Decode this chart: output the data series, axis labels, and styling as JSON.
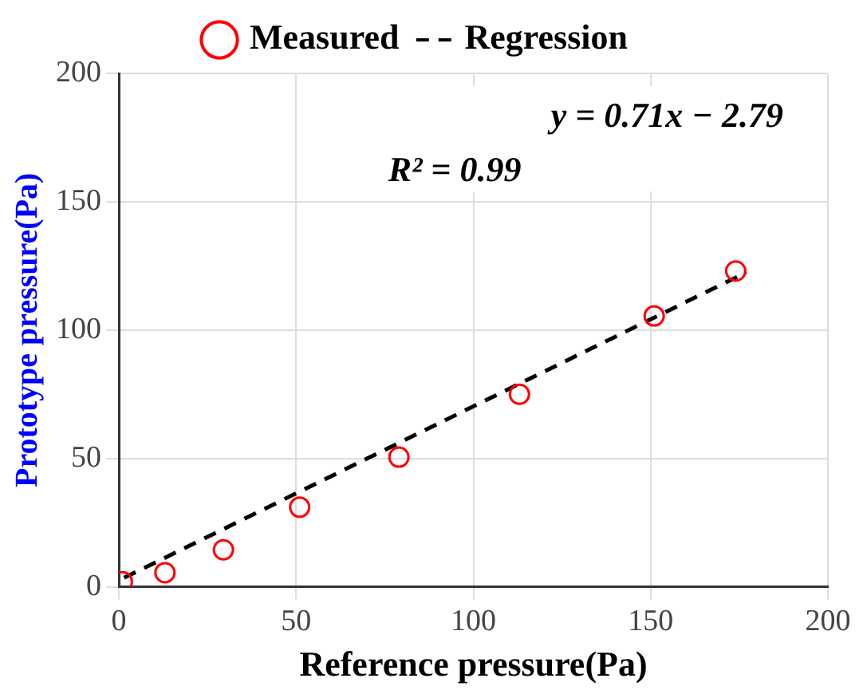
{
  "chart_data": {
    "type": "scatter",
    "xlabel": "Reference pressure(Pa)",
    "ylabel": "Prototype pressure(Pa)",
    "xlim": [
      0,
      200
    ],
    "xticks": [
      0,
      50,
      100,
      150,
      200
    ],
    "ylim": [
      0,
      200
    ],
    "yticks": [
      0,
      50,
      100,
      150,
      200
    ],
    "grid": true,
    "legend": "top",
    "annotations": [
      "y = 0.71x − 2.79",
      "R² = 0.99"
    ],
    "series": [
      {
        "name": "Measured",
        "color": "#ff0000",
        "marker": "circle",
        "x": [
          1,
          13,
          29.5,
          51,
          79,
          113,
          151,
          174
        ],
        "values": [
          2,
          5.5,
          14.4,
          31,
          50.5,
          75,
          105.5,
          123
        ]
      },
      {
        "name": "Regression",
        "type": "line",
        "color": "#000000",
        "marker": "none",
        "line_style": "dashed",
        "x": [
          1.5,
          177
        ],
        "values": [
          3.5,
          122.5
        ]
      }
    ]
  }
}
